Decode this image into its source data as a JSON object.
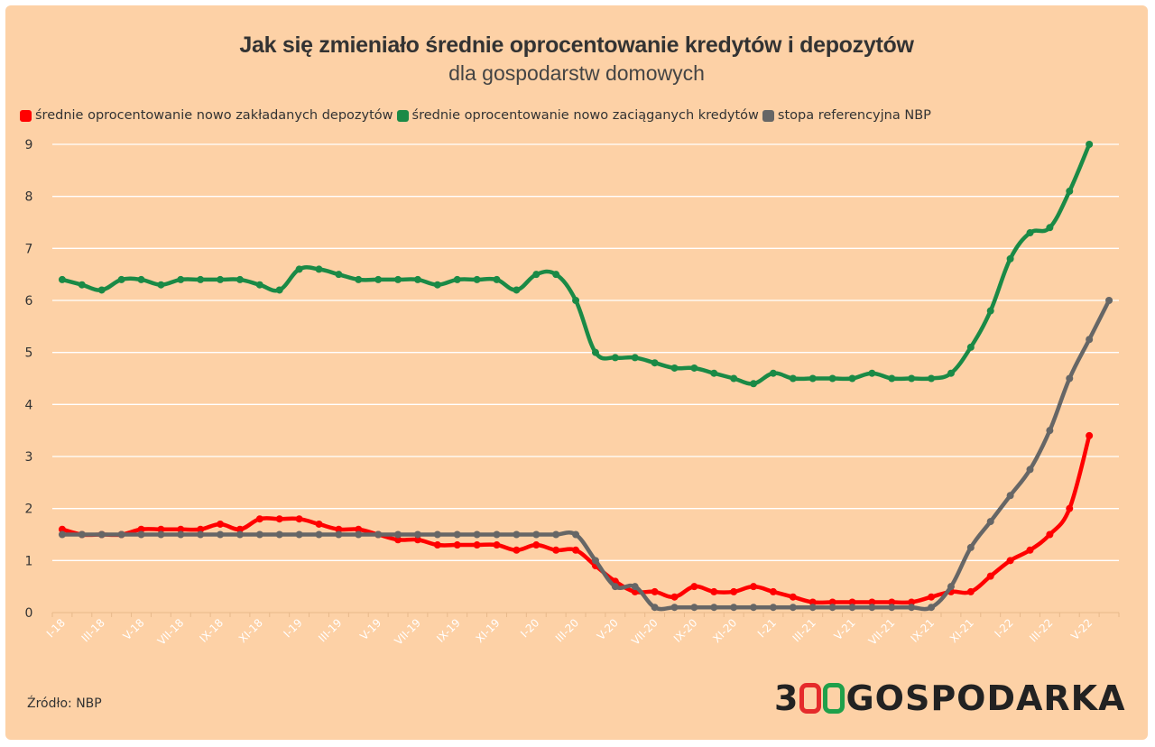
{
  "title": "Jak się zmieniało średnie oprocentowanie kredytów i depozytów",
  "subtitle": "dla gospodarstw domowych",
  "source": "Źródło: NBP",
  "logo": {
    "prefix": "3",
    "suffix": "GOSPODARKA",
    "ring1_color": "#e52b2b",
    "ring2_color": "#1fa04a"
  },
  "legend": [
    {
      "label": "średnie oprocentowanie nowo zakładanych depozytów",
      "color": "#ff0000"
    },
    {
      "label": "średnie oprocentowanie nowo zaciąganych kredytów",
      "color": "#1a8a46"
    },
    {
      "label": "stopa referencyjna NBP",
      "color": "#666666"
    }
  ],
  "chart_data": {
    "type": "line",
    "ylim": [
      0,
      9
    ],
    "yticks": [
      0,
      1,
      2,
      3,
      4,
      5,
      6,
      7,
      8,
      9
    ],
    "grid": true,
    "legend_position": "top-left",
    "x": [
      "I-18",
      "II-18",
      "III-18",
      "IV-18",
      "V-18",
      "VI-18",
      "VII-18",
      "VIII-18",
      "IX-18",
      "X-18",
      "XI-18",
      "XII-18",
      "I-19",
      "II-19",
      "III-19",
      "IV-19",
      "V-19",
      "VI-19",
      "VII-19",
      "VIII-19",
      "IX-19",
      "X-19",
      "XI-19",
      "XII-19",
      "I-20",
      "II-20",
      "III-20",
      "IV-20",
      "V-20",
      "VI-20",
      "VII-20",
      "VIII-20",
      "IX-20",
      "X-20",
      "XI-20",
      "XII-20",
      "I-21",
      "II-21",
      "III-21",
      "IV-21",
      "V-21",
      "VI-21",
      "VII-21",
      "VIII-21",
      "IX-21",
      "X-21",
      "XI-21",
      "XII-21",
      "I-22",
      "II-22",
      "III-22",
      "IV-22",
      "V-22",
      "VI-22"
    ],
    "xtick_labels": [
      "I-18",
      "",
      "III-18",
      "",
      "V-18",
      "",
      "VII-18",
      "",
      "IX-18",
      "",
      "XI-18",
      "",
      "I-19",
      "",
      "III-19",
      "",
      "V-19",
      "",
      "VII-19",
      "",
      "IX-19",
      "",
      "XI-19",
      "",
      "I-20",
      "",
      "III-20",
      "",
      "V-20",
      "",
      "VII-20",
      "",
      "IX-20",
      "",
      "XI-20",
      "",
      "I-21",
      "",
      "III-21",
      "",
      "V-21",
      "",
      "VII-21",
      "",
      "IX-21",
      "",
      "XI-21",
      "",
      "I-22",
      "",
      "III-22",
      "",
      "V-22",
      ""
    ],
    "series": [
      {
        "name": "średnie oprocentowanie nowo zakładanych depozytów",
        "color": "#ff0000",
        "values": [
          1.6,
          1.5,
          1.5,
          1.5,
          1.6,
          1.6,
          1.6,
          1.6,
          1.7,
          1.6,
          1.8,
          1.8,
          1.8,
          1.7,
          1.6,
          1.6,
          1.5,
          1.4,
          1.4,
          1.3,
          1.3,
          1.3,
          1.3,
          1.2,
          1.3,
          1.2,
          1.2,
          0.9,
          0.6,
          0.4,
          0.4,
          0.3,
          0.5,
          0.4,
          0.4,
          0.5,
          0.4,
          0.3,
          0.2,
          0.2,
          0.2,
          0.2,
          0.2,
          0.2,
          0.3,
          0.4,
          0.4,
          0.7,
          1.0,
          1.2,
          1.5,
          2.0,
          3.4,
          null
        ]
      },
      {
        "name": "średnie oprocentowanie nowo zaciąganych kredytów",
        "color": "#1a8a46",
        "values": [
          6.4,
          6.3,
          6.2,
          6.4,
          6.4,
          6.3,
          6.4,
          6.4,
          6.4,
          6.4,
          6.3,
          6.2,
          6.6,
          6.6,
          6.5,
          6.4,
          6.4,
          6.4,
          6.4,
          6.3,
          6.4,
          6.4,
          6.4,
          6.2,
          6.5,
          6.5,
          6.0,
          5.0,
          4.9,
          4.9,
          4.8,
          4.7,
          4.7,
          4.6,
          4.5,
          4.4,
          4.6,
          4.5,
          4.5,
          4.5,
          4.5,
          4.6,
          4.5,
          4.5,
          4.5,
          4.6,
          5.1,
          5.8,
          6.8,
          7.3,
          7.4,
          8.1,
          9.0,
          null
        ]
      },
      {
        "name": "stopa referencyjna NBP",
        "color": "#666666",
        "values": [
          1.5,
          1.5,
          1.5,
          1.5,
          1.5,
          1.5,
          1.5,
          1.5,
          1.5,
          1.5,
          1.5,
          1.5,
          1.5,
          1.5,
          1.5,
          1.5,
          1.5,
          1.5,
          1.5,
          1.5,
          1.5,
          1.5,
          1.5,
          1.5,
          1.5,
          1.5,
          1.5,
          1.0,
          0.5,
          0.5,
          0.1,
          0.1,
          0.1,
          0.1,
          0.1,
          0.1,
          0.1,
          0.1,
          0.1,
          0.1,
          0.1,
          0.1,
          0.1,
          0.1,
          0.1,
          0.5,
          1.25,
          1.75,
          2.25,
          2.75,
          3.5,
          4.5,
          5.25,
          6.0
        ]
      }
    ]
  }
}
